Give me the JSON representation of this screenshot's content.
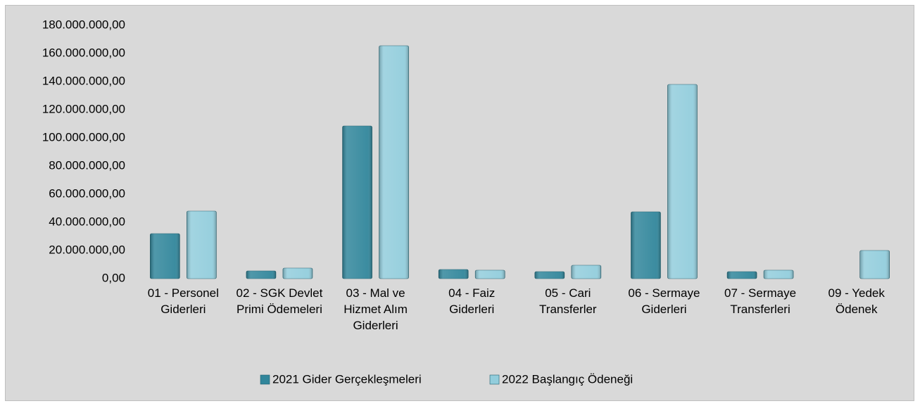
{
  "chart_data": {
    "type": "bar",
    "categories": [
      "01 - Personel Giderleri",
      "02 - SGK Devlet Primi Ödemeleri",
      "03 - Mal ve Hizmet Alım Giderleri",
      "04 - Faiz Giderleri",
      "05 - Cari Transferler",
      "06 - Sermaye Giderleri",
      "07 - Sermaye Transferleri",
      "09 - Yedek Ödenek"
    ],
    "series": [
      {
        "name": "2021 Gider Gerçekleşmeleri",
        "color": "#31869b",
        "values": [
          32000000,
          5500000,
          108500000,
          6500000,
          5000000,
          47500000,
          5000000,
          null
        ]
      },
      {
        "name": "2022 Başlangıç Ödeneği",
        "color": "#92cddc",
        "values": [
          48000000,
          7500000,
          165500000,
          6000000,
          9500000,
          138000000,
          6000000,
          20000000
        ]
      }
    ],
    "ylim": [
      0,
      180000000
    ],
    "yticks": [
      {
        "value": 0,
        "label": "0,00"
      },
      {
        "value": 20000000,
        "label": "20.000.000,00"
      },
      {
        "value": 40000000,
        "label": "40.000.000,00"
      },
      {
        "value": 60000000,
        "label": "60.000.000,00"
      },
      {
        "value": 80000000,
        "label": "80.000.000,00"
      },
      {
        "value": 100000000,
        "label": "100.000.000,00"
      },
      {
        "value": 120000000,
        "label": "120.000.000,00"
      },
      {
        "value": 140000000,
        "label": "140.000.000,00"
      },
      {
        "value": 160000000,
        "label": "160.000.000,00"
      },
      {
        "value": 180000000,
        "label": "180.000.000,00"
      }
    ],
    "grid": false,
    "legend": "bottom"
  }
}
